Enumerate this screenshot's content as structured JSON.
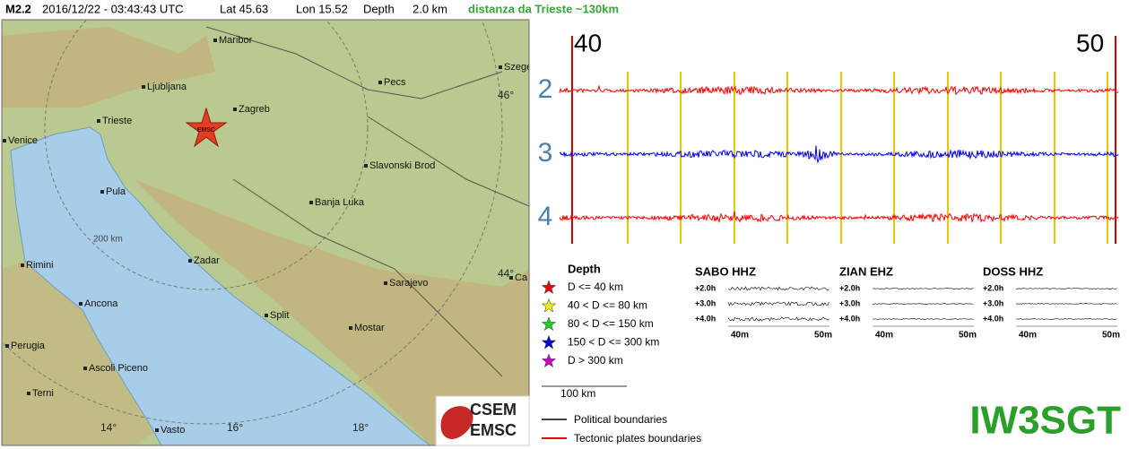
{
  "header": {
    "magnitude": "M2.2",
    "datetime": "2016/12/22 - 03:43:43 UTC",
    "lat": "Lat 45.63",
    "lon": "Lon 15.52",
    "depth": "Depth",
    "depth_value": "2.0 km",
    "distance": "distanza da Trieste ~130km"
  },
  "map": {
    "cities": [
      "Maribor",
      "Ljubljana",
      "Zagreb",
      "Trieste",
      "Venice",
      "Pecs",
      "Szege",
      "Slavonski Brod",
      "Banja Luka",
      "Pula",
      "Zadar",
      "Rimini",
      "Ancona",
      "Split",
      "Sarajevo",
      "Mostar",
      "Perugia",
      "Ascoli Piceno",
      "Terni",
      "Vasto",
      "Ca"
    ],
    "graticule": [
      "46°",
      "44°",
      "14°",
      "16°",
      "18°"
    ],
    "range_label": "200 km",
    "epicenter_label": "EMSC"
  },
  "seismogram": {
    "time_labels": [
      "40",
      "50"
    ],
    "trace_labels": [
      "2",
      "3",
      "4"
    ]
  },
  "legend": {
    "title": "Depth",
    "items": [
      "D <= 40 km",
      "40 < D <= 80 km",
      "80 < D <= 150 km",
      "150 < D <= 300 km",
      "D > 300 km"
    ]
  },
  "stations": [
    {
      "name": "SABO HHZ",
      "offsets": [
        "+2.0h",
        "+3.0h",
        "+4.0h"
      ],
      "time_labels": [
        "40m",
        "50m"
      ]
    },
    {
      "name": "ZIAN EHZ",
      "offsets": [
        "+2.0h",
        "+3.0h",
        "+4.0h"
      ],
      "time_labels": [
        "40m",
        "50m"
      ]
    },
    {
      "name": "DOSS HHZ",
      "offsets": [
        "+2.0h",
        "+3.0h",
        "+4.0h"
      ],
      "time_labels": [
        "40m",
        "50m"
      ]
    }
  ],
  "scale": "100 km",
  "logo": [
    "CSEM",
    "EMSC"
  ],
  "boundaries": [
    "Political boundaries",
    "Tectonic plates boundaries"
  ],
  "callsign": "IW3SGT"
}
